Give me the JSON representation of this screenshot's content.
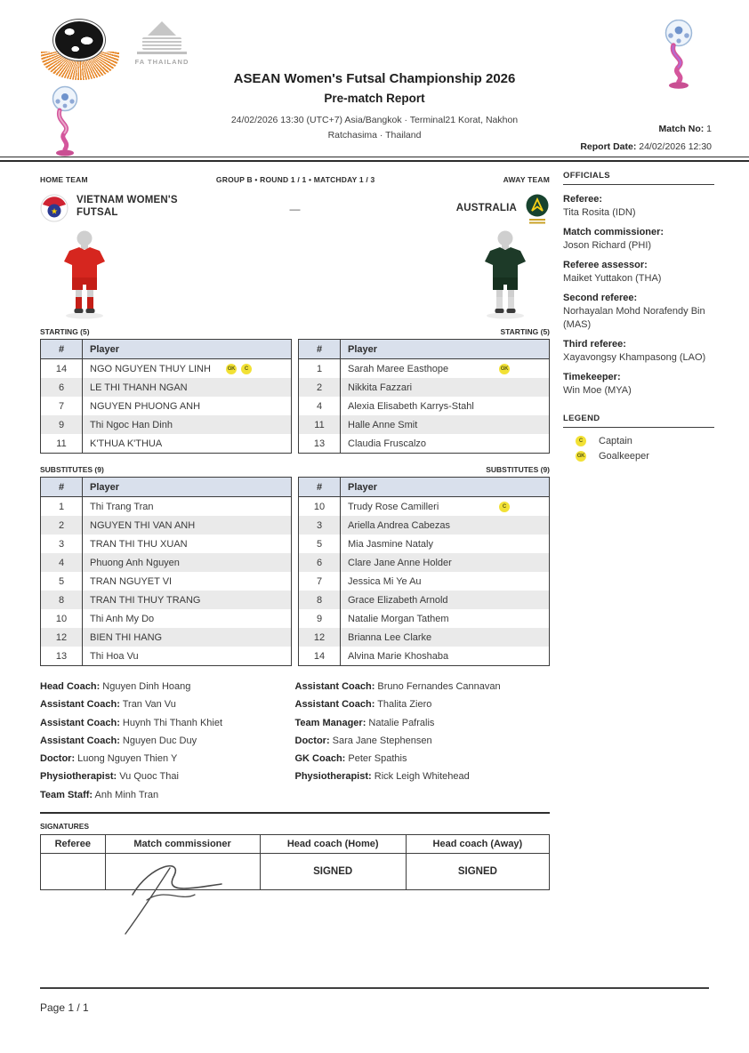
{
  "header": {
    "title": "ASEAN Women's Futsal Championship 2026",
    "subtitle": "Pre-match Report",
    "datetime_line1": "24/02/2026 13:30 (UTC+7) Asia/Bangkok  ·  Terminal21 Korat, Nakhon",
    "datetime_line2": "Ratchasima  ·  Thailand",
    "match_no_label": "Match No:",
    "match_no": "1",
    "report_date_label": "Report Date:",
    "report_date": "24/02/2026 12:30",
    "fa_thailand_text": "FA THAILAND"
  },
  "match": {
    "home_team_label": "HOME TEAM",
    "away_team_label": "AWAY TEAM",
    "group_line": "GROUP B • ROUND 1 / 1 • MATCHDAY 1 / 3",
    "score_placeholder": "—",
    "home_team_name": "VIETNAM WOMEN'S FUTSAL",
    "away_team_name": "AUSTRALIA"
  },
  "colors": {
    "home_kit": "#d6261f",
    "away_kit": "#1d3a28",
    "badge_yellow": "#f2e135",
    "table_header_bg": "#d9e0ec"
  },
  "lineups": {
    "col_no": "#",
    "col_player": "Player",
    "starting_home_label": "STARTING (5)",
    "starting_away_label": "STARTING (5)",
    "subs_home_label": "SUBSTITUTES (9)",
    "subs_away_label": "SUBSTITUTES (9)",
    "home_starting": [
      {
        "no": "14",
        "name": "NGO NGUYEN THUY LINH",
        "badges": [
          "GK",
          "C"
        ]
      },
      {
        "no": "6",
        "name": "LE THI THANH NGAN",
        "badges": []
      },
      {
        "no": "7",
        "name": "NGUYEN PHUONG ANH",
        "badges": []
      },
      {
        "no": "9",
        "name": "Thi Ngoc Han Dinh",
        "badges": []
      },
      {
        "no": "11",
        "name": "K'THUA K'THUA",
        "badges": []
      }
    ],
    "away_starting": [
      {
        "no": "1",
        "name": "Sarah Maree Easthope",
        "badges": [
          "GK"
        ]
      },
      {
        "no": "2",
        "name": "Nikkita Fazzari",
        "badges": []
      },
      {
        "no": "4",
        "name": "Alexia Elisabeth Karrys-Stahl",
        "badges": []
      },
      {
        "no": "11",
        "name": "Halle Anne Smit",
        "badges": []
      },
      {
        "no": "13",
        "name": "Claudia Fruscalzo",
        "badges": []
      }
    ],
    "home_subs": [
      {
        "no": "1",
        "name": "Thi Trang Tran",
        "badges": []
      },
      {
        "no": "2",
        "name": "NGUYEN THI VAN ANH",
        "badges": []
      },
      {
        "no": "3",
        "name": "TRAN THI THU XUAN",
        "badges": []
      },
      {
        "no": "4",
        "name": "Phuong Anh Nguyen",
        "badges": []
      },
      {
        "no": "5",
        "name": "TRAN NGUYET VI",
        "badges": []
      },
      {
        "no": "8",
        "name": "TRAN THI THUY TRANG",
        "badges": []
      },
      {
        "no": "10",
        "name": "Thi Anh My Do",
        "badges": []
      },
      {
        "no": "12",
        "name": "BIEN THI HANG",
        "badges": []
      },
      {
        "no": "13",
        "name": "Thi Hoa Vu",
        "badges": []
      }
    ],
    "away_subs": [
      {
        "no": "10",
        "name": "Trudy Rose Camilleri",
        "badges": [
          "C"
        ]
      },
      {
        "no": "3",
        "name": "Ariella Andrea Cabezas",
        "badges": []
      },
      {
        "no": "5",
        "name": "Mia Jasmine Nataly",
        "badges": []
      },
      {
        "no": "6",
        "name": "Clare Jane Anne Holder",
        "badges": []
      },
      {
        "no": "7",
        "name": "Jessica Mi Ye Au",
        "badges": []
      },
      {
        "no": "8",
        "name": "Grace Elizabeth Arnold",
        "badges": []
      },
      {
        "no": "9",
        "name": "Natalie Morgan Tathem",
        "badges": []
      },
      {
        "no": "12",
        "name": "Brianna Lee Clarke",
        "badges": []
      },
      {
        "no": "14",
        "name": "Alvina Marie Khoshaba",
        "badges": []
      }
    ]
  },
  "staff": {
    "home": [
      {
        "label": "Head Coach:",
        "value": "Nguyen Dinh Hoang"
      },
      {
        "label": "Assistant Coach:",
        "value": "Tran Van Vu"
      },
      {
        "label": "Assistant Coach:",
        "value": "Huynh Thi Thanh Khiet"
      },
      {
        "label": "Assistant Coach:",
        "value": "Nguyen Duc Duy"
      },
      {
        "label": "Doctor:",
        "value": "Luong Nguyen Thien Y"
      },
      {
        "label": "Physiotherapist:",
        "value": "Vu Quoc Thai"
      },
      {
        "label": "Team Staff:",
        "value": "Anh Minh Tran"
      }
    ],
    "away": [
      {
        "label": "Assistant Coach:",
        "value": "Bruno Fernandes Cannavan"
      },
      {
        "label": "Assistant Coach:",
        "value": "Thalita Ziero"
      },
      {
        "label": "Team Manager:",
        "value": "Natalie Pafralis"
      },
      {
        "label": "Doctor:",
        "value": "Sara Jane Stephensen"
      },
      {
        "label": "GK Coach:",
        "value": "Peter Spathis"
      },
      {
        "label": "Physiotherapist:",
        "value": "Rick Leigh Whitehead"
      }
    ]
  },
  "officials": {
    "title": "OFFICIALS",
    "entries": [
      {
        "label": "Referee:",
        "value": "Tita Rosita (IDN)"
      },
      {
        "label": "Match commissioner:",
        "value": "Joson Richard (PHI)"
      },
      {
        "label": "Referee assessor:",
        "value": "Maiket Yuttakon (THA)"
      },
      {
        "label": "Second referee:",
        "value": "Norhayalan Mohd Norafendy Bin (MAS)"
      },
      {
        "label": "Third referee:",
        "value": "Xayavongsy Khampasong (LAO)"
      },
      {
        "label": "Timekeeper:",
        "value": "Win Moe (MYA)"
      }
    ]
  },
  "legend": {
    "title": "LEGEND",
    "items": [
      {
        "badge": "C",
        "label": "Captain"
      },
      {
        "badge": "GK",
        "label": "Goalkeeper"
      }
    ]
  },
  "signatures": {
    "title": "SIGNATURES",
    "columns": [
      "Referee",
      "Match commissioner",
      "Head coach (Home)",
      "Head coach (Away)"
    ],
    "referee_cell": "",
    "home_coach_cell": "SIGNED",
    "away_coach_cell": "SIGNED"
  },
  "footer": {
    "page": "Page 1 / 1"
  }
}
